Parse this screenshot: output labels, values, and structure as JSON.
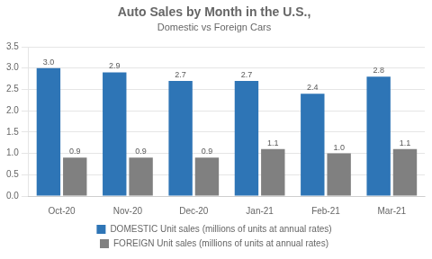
{
  "chart_data": {
    "type": "bar",
    "title": "Auto Sales by Month in the U.S.,",
    "subtitle": "Domestic vs Foreign Cars",
    "categories": [
      "Oct-20",
      "Nov-20",
      "Dec-20",
      "Jan-21",
      "Feb-21",
      "Mar-21"
    ],
    "series": [
      {
        "name": "DOMESTIC Unit sales (millions of units at annual rates)",
        "color": "#2E75B6",
        "values": [
          3.0,
          2.9,
          2.7,
          2.7,
          2.4,
          2.8
        ],
        "value_labels": [
          "3.0",
          "2.9",
          "2.7",
          "2.7",
          "2.4",
          "2.8"
        ]
      },
      {
        "name": "FOREIGN Unit sales (millions of units at annual rates)",
        "color": "#808080",
        "values": [
          0.9,
          0.9,
          0.9,
          1.1,
          1.0,
          1.1
        ],
        "value_labels": [
          "0.9",
          "0.9",
          "0.9",
          "1.1",
          "1.0",
          "1.1"
        ]
      }
    ],
    "ylim": [
      0,
      3.5
    ],
    "yticks": [
      {
        "value": 0.0,
        "label": "0.0"
      },
      0.5,
      {
        "value": 1.0,
        "label": "1.0"
      },
      1.5,
      {
        "value": 2.0,
        "label": "2.0"
      },
      2.5,
      {
        "value": 3.0,
        "label": "3.0"
      },
      3.5
    ],
    "grid": true,
    "legend": "bottom",
    "data_labels": true
  }
}
